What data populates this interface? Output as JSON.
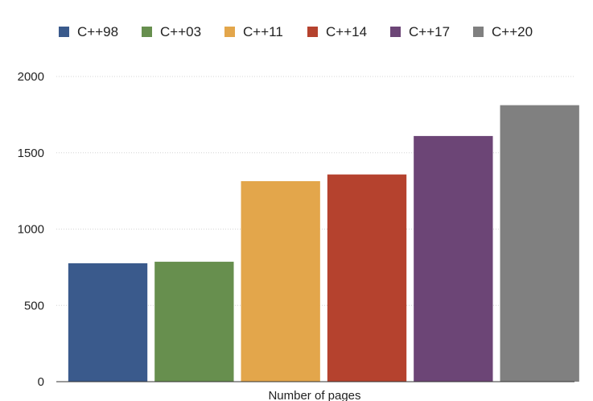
{
  "chart_data": {
    "type": "bar",
    "title": "",
    "xlabel": "Number of pages",
    "ylabel": "",
    "categories": [
      "C++98",
      "C++03",
      "C++11",
      "C++14",
      "C++17",
      "C++20"
    ],
    "values": [
      776,
      786,
      1314,
      1358,
      1610,
      1812
    ],
    "colors": [
      "#3a5a8c",
      "#678f4e",
      "#e3a64b",
      "#b5422e",
      "#6c4576",
      "#808080"
    ],
    "legend": [
      "C++98",
      "C++03",
      "C++11",
      "C++14",
      "C++17",
      "C++20"
    ],
    "legend_position": "top",
    "ylim": [
      0,
      2000
    ],
    "yticks": [
      0,
      500,
      1000,
      1500,
      2000
    ],
    "ytick_labels": [
      "0",
      "500",
      "1000",
      "1500",
      "2000"
    ],
    "grid": true
  }
}
